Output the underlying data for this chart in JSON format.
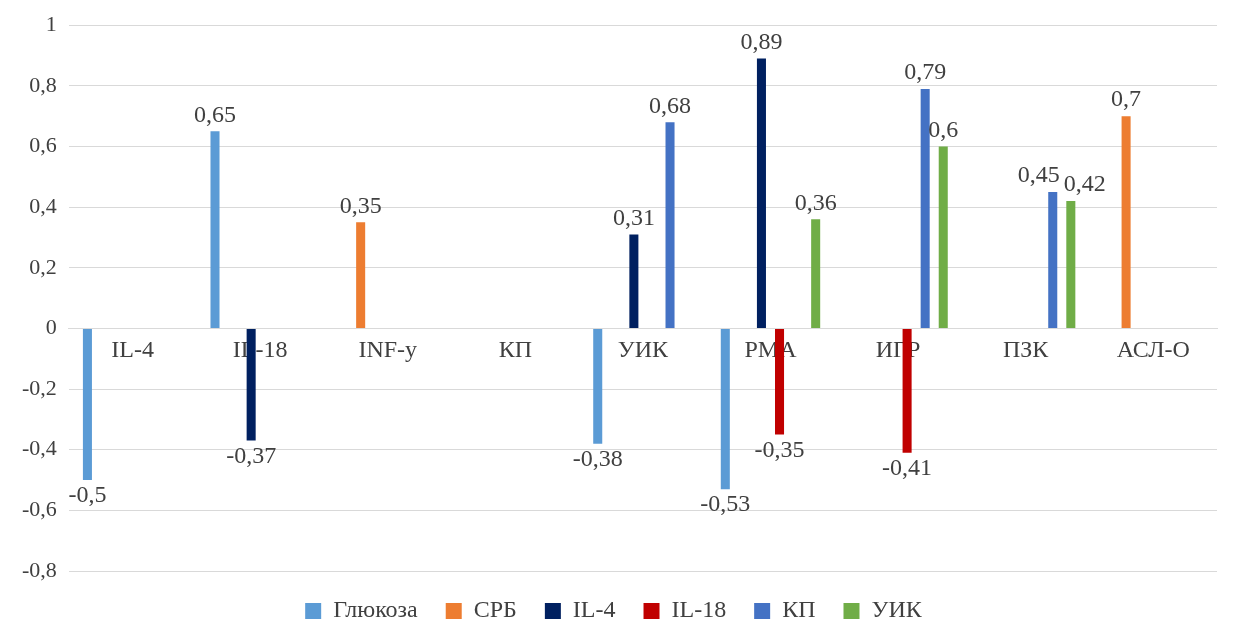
{
  "chart_data": {
    "type": "bar",
    "categories": [
      "IL-4",
      "IL-18",
      "INF-y",
      "КП",
      "УИК",
      "РМА",
      "ИГР",
      "ПЗК",
      "АСЛ-О"
    ],
    "series": [
      {
        "name": "Глюкоза",
        "color": "#5b9bd5",
        "values": [
          -0.5,
          0.65,
          null,
          null,
          -0.38,
          -0.53,
          null,
          null,
          null
        ],
        "value_labels": [
          "-0,5",
          "0,65",
          null,
          null,
          "-0,38",
          "-0,53",
          null,
          null,
          null
        ]
      },
      {
        "name": "СРБ",
        "color": "#ed7d31",
        "values": [
          null,
          null,
          0.35,
          null,
          null,
          null,
          null,
          null,
          0.7
        ],
        "value_labels": [
          null,
          null,
          "0,35",
          null,
          null,
          null,
          null,
          null,
          "0,7"
        ]
      },
      {
        "name": "IL-4",
        "color": "#002060",
        "values": [
          null,
          -0.37,
          null,
          null,
          0.31,
          0.89,
          null,
          null,
          null
        ],
        "value_labels": [
          null,
          "-0,37",
          null,
          null,
          "0,31",
          "0,89",
          null,
          null,
          null
        ]
      },
      {
        "name": "IL-18",
        "color": "#c00000",
        "values": [
          null,
          null,
          null,
          null,
          null,
          -0.35,
          -0.41,
          null,
          null
        ],
        "value_labels": [
          null,
          null,
          null,
          null,
          null,
          "-0,35",
          "-0,41",
          null,
          null
        ]
      },
      {
        "name": "КП",
        "color": "#4472c4",
        "values": [
          null,
          null,
          null,
          null,
          0.68,
          null,
          0.79,
          0.45,
          null
        ],
        "value_labels": [
          null,
          null,
          null,
          null,
          "0,68",
          null,
          "0,79",
          "0,45",
          null
        ]
      },
      {
        "name": "УИК",
        "color": "#70ad47",
        "values": [
          null,
          null,
          null,
          null,
          null,
          0.36,
          0.6,
          0.42,
          null
        ],
        "value_labels": [
          null,
          null,
          null,
          null,
          null,
          "0,36",
          "0,6",
          "0,42",
          null
        ]
      }
    ],
    "ylim": [
      -0.8,
      1
    ],
    "yticks": [
      {
        "value": -0.8,
        "label": "-0,8"
      },
      {
        "value": -0.6,
        "label": "-0,6"
      },
      {
        "value": -0.4,
        "label": "-0,4"
      },
      {
        "value": -0.2,
        "label": "-0,2"
      },
      {
        "value": 0,
        "label": "0"
      },
      {
        "value": 0.2,
        "label": "0,2"
      },
      {
        "value": 0.4,
        "label": "0,4"
      },
      {
        "value": 0.6,
        "label": "0,6"
      },
      {
        "value": 0.8,
        "label": "0,8"
      },
      {
        "value": 1,
        "label": "1"
      }
    ],
    "grid": "y",
    "legend": "bottom"
  }
}
